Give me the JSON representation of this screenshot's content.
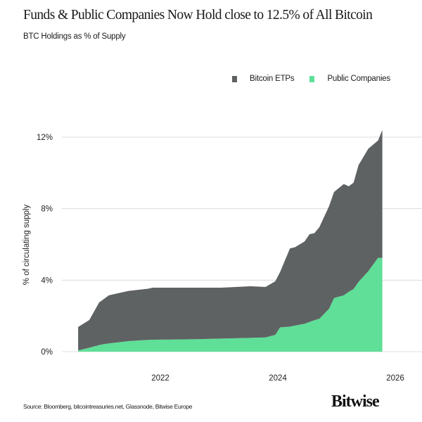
{
  "chart_data": {
    "type": "area",
    "stacked": true,
    "title": "Funds & Public Companies Now Hold close to 12.5% of All Bitcoin",
    "subtitle": "BTC Holdings as % of Supply",
    "ylabel": "% of circulating supply",
    "xlabel": "",
    "ylim": [
      0,
      12.5
    ],
    "yticks": [
      0,
      4,
      8,
      12
    ],
    "ytick_labels": [
      "0%",
      "4%",
      "8%",
      "12%"
    ],
    "xticks": [
      "2022",
      "2024",
      "2026"
    ],
    "grid": "horizontal",
    "legend_position": "top-right",
    "x": [
      "2020-08",
      "2020-10",
      "2020-12",
      "2021-01",
      "2021-02",
      "2021-06",
      "2021-10",
      "2021-11",
      "2022-03",
      "2022-08",
      "2023-01",
      "2023-07",
      "2023-10",
      "2023-12",
      "2024-01",
      "2024-03",
      "2024-04",
      "2024-06",
      "2024-07",
      "2024-08",
      "2024-09",
      "2024-11",
      "2024-12",
      "2025-02",
      "2025-03",
      "2025-04",
      "2025-05",
      "2025-07",
      "2025-09",
      "2025-10"
    ],
    "series": [
      {
        "name": "Public Companies",
        "color": "#5fdf98",
        "values": [
          0.07,
          0.22,
          0.37,
          0.42,
          0.46,
          0.59,
          0.66,
          0.67,
          0.68,
          0.7,
          0.73,
          0.77,
          0.8,
          0.94,
          1.36,
          1.4,
          1.46,
          1.56,
          1.66,
          1.76,
          1.84,
          2.4,
          3.0,
          3.15,
          3.35,
          3.5,
          3.9,
          4.5,
          5.25,
          5.25
        ]
      },
      {
        "name": "Bitcoin ETPs",
        "color": "#5f6263",
        "values": [
          1.31,
          1.55,
          2.38,
          2.53,
          2.69,
          2.81,
          2.86,
          2.91,
          2.9,
          2.88,
          2.85,
          2.89,
          2.82,
          3.0,
          3.1,
          4.38,
          4.38,
          4.61,
          4.91,
          4.87,
          5.12,
          5.74,
          5.93,
          6.23,
          5.9,
          5.95,
          6.53,
          6.85,
          6.56,
          7.15
        ]
      }
    ],
    "source": "Source: Bloomberg, bitcointreasuries.net, Glassnode, Bitwise Europe"
  },
  "logo": "Bitwise"
}
